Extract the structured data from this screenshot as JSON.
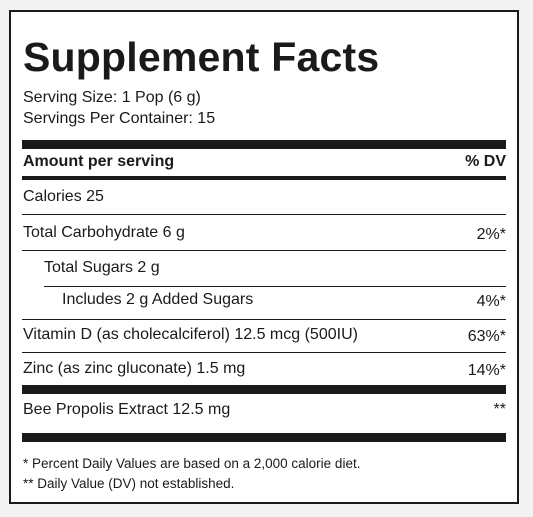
{
  "title": "Supplement Facts",
  "serving_size": "Serving Size: 1 Pop (6 g)",
  "servings_per_container": "Servings Per Container:  15",
  "header": {
    "amount": "Amount per serving",
    "dv": "% DV"
  },
  "rows": [
    {
      "label": "Calories  25",
      "dv": ""
    },
    {
      "label": "Total Carbohydrate  6 g",
      "dv": "2%*"
    },
    {
      "label": "Total Sugars  2 g",
      "dv": ""
    },
    {
      "label": "Includes 2 g Added Sugars",
      "dv": "4%*"
    },
    {
      "label": "Vitamin D (as cholecalciferol)  12.5 mcg (500IU)",
      "dv": "63%*"
    },
    {
      "label": "Zinc (as zinc gluconate)  1.5 mg",
      "dv": "14%*"
    },
    {
      "label": "Bee Propolis Extract  12.5 mg",
      "dv": "**"
    }
  ],
  "footnotes": [
    "* Percent Daily Values are based on a 2,000 calorie diet.",
    "** Daily Value (DV) not established."
  ]
}
